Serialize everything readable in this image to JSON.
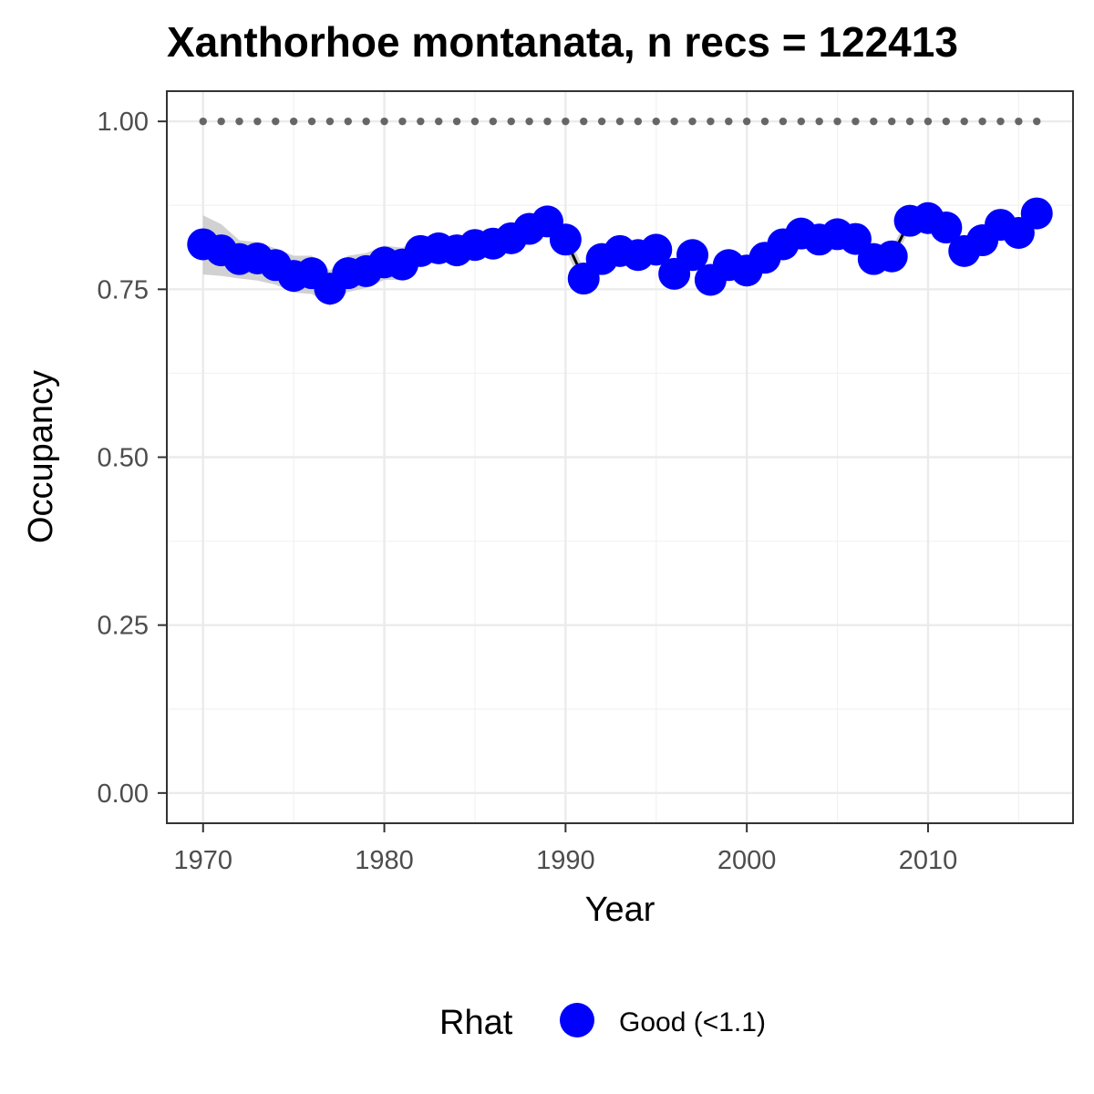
{
  "chart_data": {
    "type": "line",
    "title": "Xanthorhoe montanata, n recs = 122413",
    "xlabel": "Year",
    "ylabel": "Occupancy",
    "xlim": [
      1968,
      2018
    ],
    "ylim": [
      -0.045,
      1.045
    ],
    "x_ticks": [
      1970,
      1980,
      1990,
      2000,
      2010
    ],
    "x_tick_labels": [
      "1970",
      "1980",
      "1990",
      "2000",
      "2010"
    ],
    "y_ticks": [
      0,
      0.25,
      0.5,
      0.75,
      1.0
    ],
    "y_tick_labels": [
      "0.00",
      "0.25",
      "0.50",
      "0.75",
      "1.00"
    ],
    "grid": true,
    "legend": {
      "title": "Rhat",
      "position": "bottom",
      "entries": [
        {
          "label": "Good (<1.1)",
          "color": "#0000ff"
        }
      ]
    },
    "colors": {
      "points": "#0000ff",
      "line": "#000000",
      "ribbon": "#bdbdbd",
      "reference": "#666666"
    },
    "reference_line": {
      "y": 1.0,
      "style": "dotted"
    },
    "series": [
      {
        "x": [
          1970,
          1971,
          1972,
          1973,
          1974,
          1975,
          1976,
          1977,
          1978,
          1979,
          1980,
          1981,
          1982,
          1983,
          1984,
          1985,
          1986,
          1987,
          1988,
          1989,
          1990,
          1991,
          1992,
          1993,
          1994,
          1995,
          1996,
          1997,
          1998,
          1999,
          2000,
          2001,
          2002,
          2003,
          2004,
          2005,
          2006,
          2007,
          2008,
          2009,
          2010,
          2011,
          2012,
          2013,
          2014,
          2015,
          2016
        ],
        "y": [
          0.817,
          0.808,
          0.795,
          0.796,
          0.786,
          0.77,
          0.774,
          0.751,
          0.774,
          0.777,
          0.79,
          0.787,
          0.807,
          0.811,
          0.808,
          0.816,
          0.818,
          0.826,
          0.84,
          0.851,
          0.824,
          0.766,
          0.795,
          0.807,
          0.801,
          0.809,
          0.773,
          0.801,
          0.764,
          0.786,
          0.778,
          0.797,
          0.817,
          0.833,
          0.824,
          0.832,
          0.825,
          0.795,
          0.799,
          0.852,
          0.856,
          0.842,
          0.807,
          0.823,
          0.846,
          0.834,
          0.863
        ],
        "lower": [
          0.772,
          0.77,
          0.766,
          0.763,
          0.757,
          0.745,
          0.743,
          0.725,
          0.746,
          0.752,
          0.764,
          0.764,
          0.786,
          0.79,
          0.79,
          0.798,
          0.8,
          0.81,
          0.825,
          0.838,
          0.808,
          0.752,
          0.781,
          0.794,
          0.788,
          0.796,
          0.76,
          0.788,
          0.751,
          0.773,
          0.765,
          0.785,
          0.805,
          0.821,
          0.812,
          0.82,
          0.813,
          0.783,
          0.787,
          0.84,
          0.844,
          0.83,
          0.795,
          0.811,
          0.834,
          0.822,
          0.851
        ],
        "upper": [
          0.86,
          0.847,
          0.823,
          0.82,
          0.811,
          0.8,
          0.8,
          0.778,
          0.8,
          0.804,
          0.815,
          0.812,
          0.828,
          0.831,
          0.826,
          0.834,
          0.836,
          0.842,
          0.855,
          0.864,
          0.84,
          0.78,
          0.809,
          0.82,
          0.814,
          0.822,
          0.786,
          0.814,
          0.777,
          0.799,
          0.791,
          0.809,
          0.829,
          0.845,
          0.836,
          0.844,
          0.837,
          0.807,
          0.811,
          0.864,
          0.868,
          0.854,
          0.819,
          0.835,
          0.858,
          0.846,
          0.875
        ]
      }
    ]
  }
}
